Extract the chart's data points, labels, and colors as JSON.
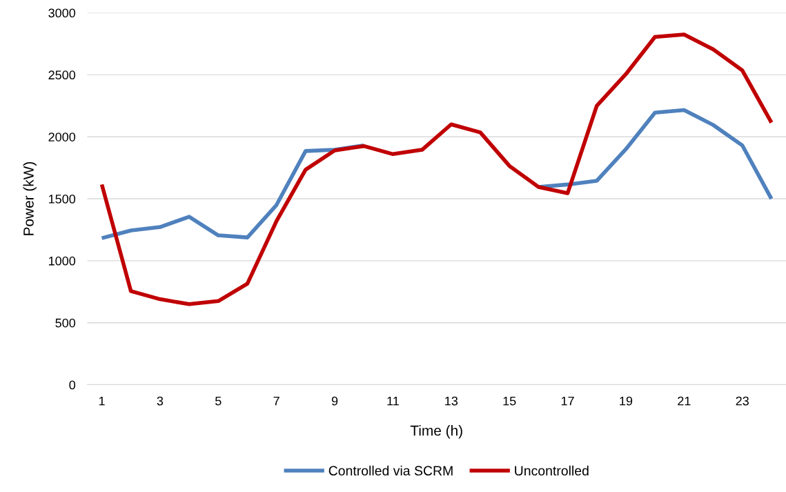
{
  "chart_data": {
    "type": "line",
    "xlabel": "Time (h)",
    "ylabel": "Power (kW)",
    "categories": [
      "1",
      null,
      "3",
      null,
      "5",
      null,
      "7",
      null,
      "9",
      null,
      "11",
      null,
      "13",
      null,
      "15",
      null,
      "17",
      null,
      "19",
      null,
      "21",
      null,
      "23",
      null
    ],
    "series": [
      {
        "name": "Controlled via SCRM",
        "color": "#4f81bd",
        "values": [
          1182,
          1244,
          1272,
          1355,
          1205,
          1188,
          1450,
          1885,
          1896,
          1930,
          null,
          null,
          null,
          null,
          null,
          1595,
          1615,
          1645,
          1900,
          2195,
          2215,
          2095,
          1930,
          1500
        ]
      },
      {
        "name": "Uncontrolled",
        "color": "#c00000",
        "values": [
          1615,
          755,
          690,
          650,
          675,
          815,
          1320,
          1735,
          1890,
          1925,
          1860,
          1895,
          2100,
          2035,
          1765,
          1595,
          1545,
          2250,
          2505,
          2805,
          2825,
          2705,
          2535,
          2115
        ]
      }
    ],
    "ylim": [
      0,
      3000
    ],
    "yticks": [
      0,
      500,
      1000,
      1500,
      2000,
      2500,
      3000
    ],
    "grid": "y",
    "legend": "bottom",
    "marker": "none",
    "line_style": "solid"
  }
}
